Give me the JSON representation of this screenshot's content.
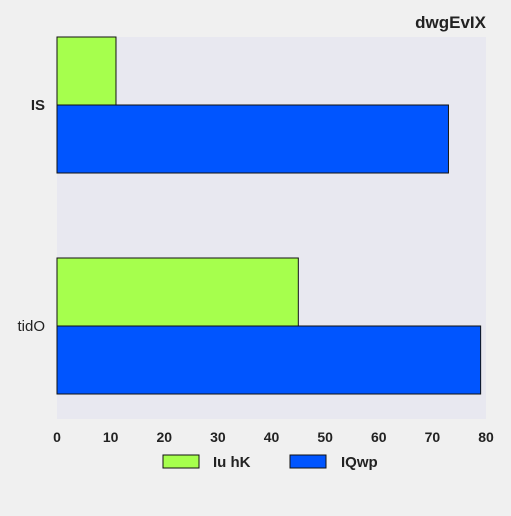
{
  "chart_data": {
    "type": "bar",
    "orientation": "horizontal",
    "title": "dwgEvIX",
    "categories": [
      "IS",
      "tidO"
    ],
    "series": [
      {
        "name": "Iu hK",
        "color": "#a6ff4d",
        "values": [
          11,
          45
        ]
      },
      {
        "name": "IQwp",
        "color": "#0055ff",
        "values": [
          73,
          79
        ]
      }
    ],
    "xlim": [
      0,
      80
    ],
    "xticks": [
      0,
      10,
      20,
      30,
      40,
      50,
      60,
      70,
      80
    ],
    "xlabel": "",
    "ylabel": "",
    "grid": false,
    "legend_position": "bottom",
    "plot_background": "#e8e8f0",
    "page_background": "#f0f0f0"
  }
}
